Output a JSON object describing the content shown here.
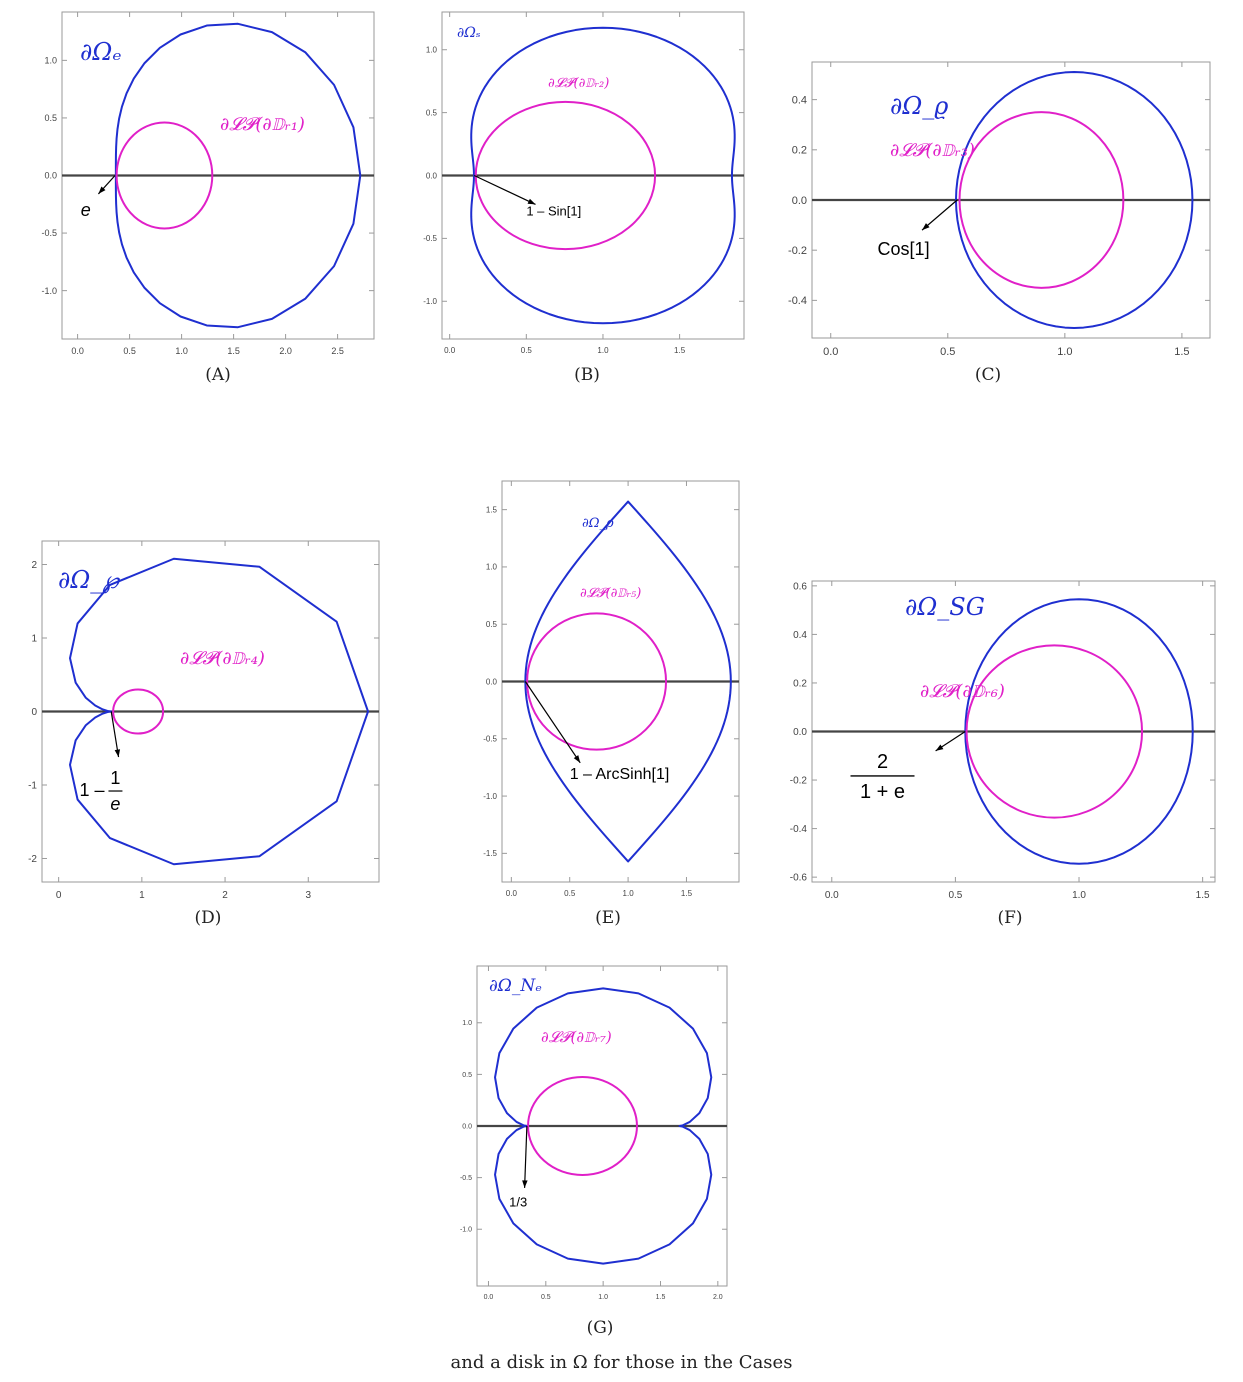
{
  "caption_fragment": "and a disk in Ω for those in the Cases",
  "panels": [
    {
      "id": "A",
      "caption": "(A)",
      "title_blue": "∂Ωₑ",
      "title_magenta": "∂𝓛𝓟(∂𝔻ᵣ₁)",
      "annotation": [
        "e"
      ],
      "xticks": [
        0.0,
        0.5,
        1.0,
        1.5,
        2.0,
        2.5
      ],
      "yticks": [
        -1.0,
        -0.5,
        0.0,
        0.5,
        1.0
      ],
      "xlim": [
        -0.15,
        2.85
      ],
      "ylim": [
        -1.42,
        1.42
      ]
    },
    {
      "id": "B",
      "caption": "(B)",
      "title_blue": "∂Ωₛ",
      "title_magenta": "∂𝓛𝓟(∂𝔻ᵣ₂)",
      "annotation": [
        "1 – Sin[1]"
      ],
      "xticks": [
        0.0,
        0.5,
        1.0,
        1.5
      ],
      "yticks": [
        -1.0,
        -0.5,
        0.0,
        0.5,
        1.0
      ],
      "xlim": [
        -0.05,
        1.92
      ],
      "ylim": [
        -1.3,
        1.3
      ]
    },
    {
      "id": "C",
      "caption": "(C)",
      "title_blue": "∂Ω_ϱ",
      "title_magenta": "∂𝓛𝓟(∂𝔻ᵣ₃)",
      "annotation": [
        "Cos[1]"
      ],
      "xticks": [
        0.0,
        0.5,
        1.0,
        1.5
      ],
      "yticks": [
        -0.4,
        -0.2,
        0.0,
        0.2,
        0.4
      ],
      "xlim": [
        -0.08,
        1.62
      ],
      "ylim": [
        -0.55,
        0.55
      ]
    },
    {
      "id": "D",
      "caption": "(D)",
      "title_blue": "∂Ω_℘",
      "title_magenta": "∂𝓛𝓟(∂𝔻ᵣ₄)",
      "annotation": [
        "1 –",
        "1",
        "e"
      ],
      "xticks": [
        0,
        1,
        2,
        3
      ],
      "yticks": [
        -2,
        -1,
        0,
        1,
        2
      ],
      "xlim": [
        -0.2,
        3.85
      ],
      "ylim": [
        -2.32,
        2.32
      ]
    },
    {
      "id": "E",
      "caption": "(E)",
      "title_blue": "∂Ω_ρ",
      "title_magenta": "∂𝓛𝓟(∂𝔻ᵣ₅)",
      "annotation": [
        "1 – ArcSinh[1]"
      ],
      "xticks": [
        0.0,
        0.5,
        1.0,
        1.5
      ],
      "yticks": [
        -1.5,
        -1.0,
        -0.5,
        0.0,
        0.5,
        1.0,
        1.5
      ],
      "xlim": [
        -0.08,
        1.95
      ],
      "ylim": [
        -1.75,
        1.75
      ]
    },
    {
      "id": "F",
      "caption": "(F)",
      "title_blue": "∂Ω_SG",
      "title_magenta": "∂𝓛𝓟(∂𝔻ᵣ₆)",
      "annotation": [
        "2",
        "1 + e"
      ],
      "xticks": [
        0.0,
        0.5,
        1.0,
        1.5
      ],
      "yticks": [
        -0.6,
        -0.4,
        -0.2,
        0.0,
        0.2,
        0.4,
        0.6
      ],
      "xlim": [
        -0.08,
        1.55
      ],
      "ylim": [
        -0.62,
        0.62
      ]
    },
    {
      "id": "G",
      "caption": "(G)",
      "title_blue": "∂Ω_Nₑ",
      "title_magenta": "∂𝓛𝓟(∂𝔻ᵣ₇)",
      "annotation": [
        "1/3"
      ],
      "xticks": [
        0.0,
        0.5,
        1.0,
        1.5,
        2.0
      ],
      "yticks": [
        -1.0,
        -0.5,
        0.0,
        0.5,
        1.0
      ],
      "xlim": [
        -0.1,
        2.08
      ],
      "ylim": [
        -1.55,
        1.55
      ]
    }
  ],
  "colors": {
    "blue": "#1f2fd0",
    "magenta": "#e020c8",
    "axis": "#555555",
    "frame": "#9a9a9a"
  }
}
